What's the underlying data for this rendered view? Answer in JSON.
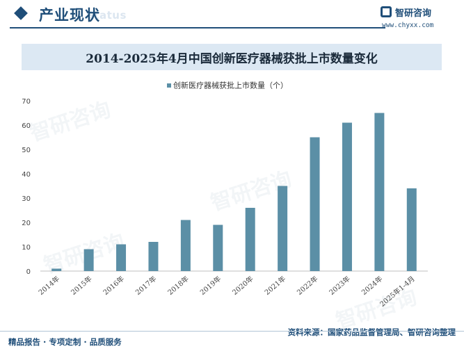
{
  "header": {
    "section_title": "产业现状",
    "section_subtitle": "Status",
    "brand_name": "智研咨询",
    "brand_url": "www.chyxx.com"
  },
  "footer": {
    "left_text": "精品报告 · 专项定制 · 品质服务",
    "source_text": "资料来源：国家药品监督管理局、智研咨询整理"
  },
  "watermark_text": "智研咨询",
  "colors": {
    "bar": "#5b8fa6",
    "accent": "#1f4e79",
    "title_band": "#dce8f3"
  },
  "chart_data": {
    "type": "bar",
    "title": "2014-2025年4月中国创新医疗器械获批上市数量变化",
    "categories": [
      "2014年",
      "2015年",
      "2016年",
      "2017年",
      "2018年",
      "2019年",
      "2020年",
      "2021年",
      "2022年",
      "2023年",
      "2024年",
      "2025年1-4月"
    ],
    "series": [
      {
        "name": "创新医疗器械获批上市数量（个）",
        "values": [
          1,
          9,
          11,
          12,
          21,
          19,
          26,
          35,
          55,
          61,
          65,
          34
        ]
      }
    ],
    "ylim": [
      0,
      70
    ],
    "yticks": [
      "0",
      "10",
      "20",
      "30",
      "40",
      "50",
      "60",
      "70"
    ],
    "xlabel": "",
    "ylabel": "",
    "legend_position": "top-center",
    "grid": false
  }
}
